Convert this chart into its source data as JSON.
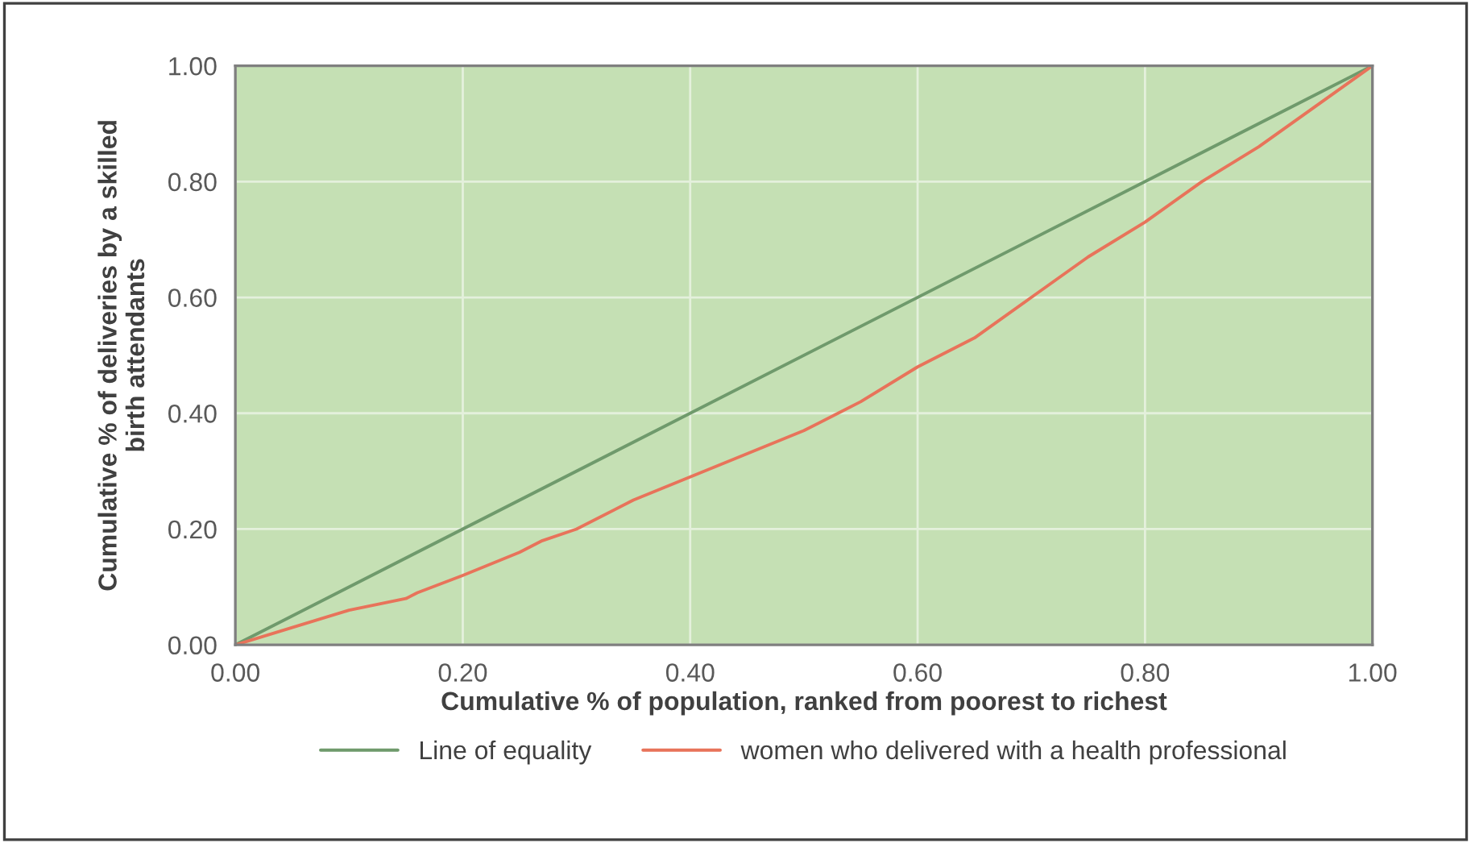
{
  "chart_data": {
    "type": "line",
    "xlabel": "Cumulative % of population, ranked from poorest to richest",
    "ylabel": "Cumulative % of deliveries by a skilled\nbirth attendants",
    "xlim": [
      0,
      1
    ],
    "ylim": [
      0,
      1
    ],
    "xticks": [
      {
        "value": 0,
        "label": "0.00"
      },
      {
        "value": 0.2,
        "label": "0.20"
      },
      {
        "value": 0.4,
        "label": "0.40"
      },
      {
        "value": 0.6,
        "label": "0.60"
      },
      {
        "value": 0.8,
        "label": "0.80"
      },
      {
        "value": 1,
        "label": "1.00"
      }
    ],
    "yticks": [
      {
        "value": 0,
        "label": "0.00"
      },
      {
        "value": 0.2,
        "label": "0.20"
      },
      {
        "value": 0.4,
        "label": "0.40"
      },
      {
        "value": 0.6,
        "label": "0.60"
      },
      {
        "value": 0.8,
        "label": "0.80"
      },
      {
        "value": 1,
        "label": "1.00"
      }
    ],
    "grid": true,
    "legend": "bottom",
    "series": [
      {
        "name": "Line of equality",
        "color": "#6f9a6c",
        "x": [
          0,
          1
        ],
        "values": [
          0,
          1
        ]
      },
      {
        "name": "women who delivered with a health professional",
        "color": "#e8735a",
        "x": [
          0,
          0.05,
          0.1,
          0.15,
          0.16,
          0.2,
          0.25,
          0.27,
          0.3,
          0.35,
          0.4,
          0.45,
          0.5,
          0.55,
          0.6,
          0.65,
          0.7,
          0.75,
          0.8,
          0.85,
          0.9,
          0.95,
          1
        ],
        "values": [
          0,
          0.03,
          0.06,
          0.08,
          0.09,
          0.12,
          0.16,
          0.18,
          0.2,
          0.25,
          0.29,
          0.33,
          0.37,
          0.42,
          0.48,
          0.53,
          0.6,
          0.67,
          0.73,
          0.8,
          0.86,
          0.93,
          1
        ]
      }
    ]
  }
}
